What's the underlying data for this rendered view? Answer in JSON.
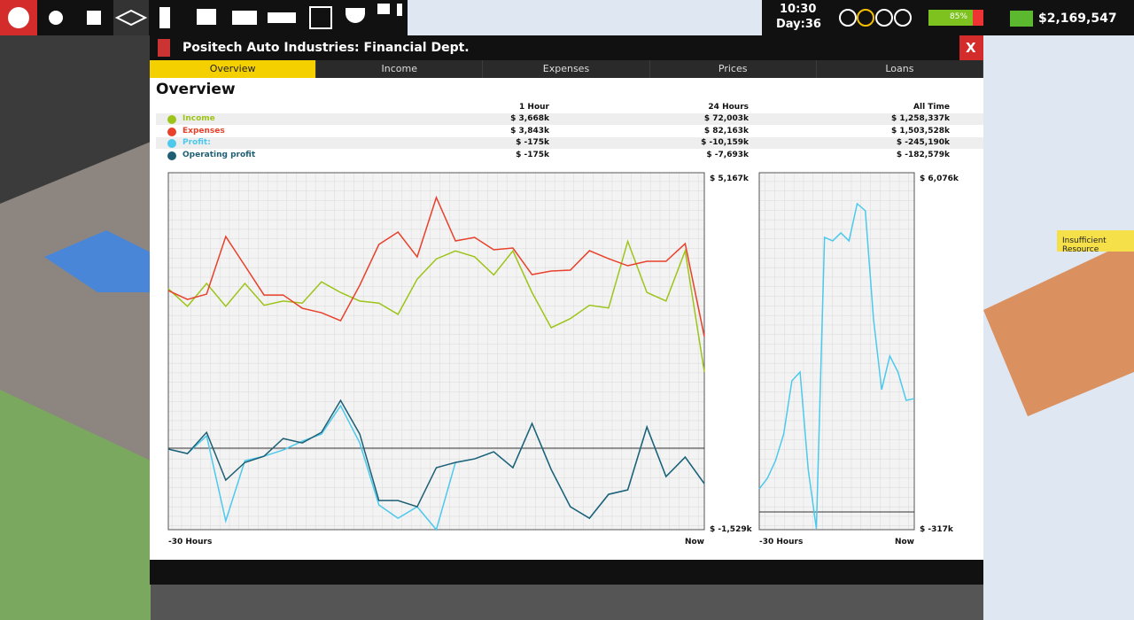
{
  "topbar": {
    "time": "10:30",
    "day": "Day:36",
    "battery": "85%",
    "money": "$2,169,547"
  },
  "window": {
    "title": "Positech Auto Industries: Financial Dept.",
    "close": "X",
    "tabs": [
      "Overview",
      "Income",
      "Expenses",
      "Prices",
      "Loans"
    ],
    "heading": "Overview"
  },
  "summary": {
    "columns": [
      "1 Hour",
      "24 Hours",
      "All Time"
    ],
    "rows": [
      [
        "$ 3,668k",
        "$ 72,003k",
        "$ 1,258,337k"
      ],
      [
        "$ 3,843k",
        "$ 82,163k",
        "$ 1,503,528k"
      ],
      [
        "$ -175k",
        "$ -10,159k",
        "$ -245,190k"
      ],
      [
        "$ -175k",
        "$ -7,693k",
        "$ -182,579k"
      ]
    ]
  },
  "side_note": "Insufficient Resource",
  "chart_data": [
    {
      "type": "line",
      "categories": [
        "-30 Hours",
        null,
        null,
        null,
        null,
        null,
        null,
        null,
        null,
        null,
        null,
        null,
        null,
        null,
        null,
        null,
        null,
        null,
        null,
        null,
        null,
        null,
        null,
        null,
        null,
        null,
        null,
        null,
        "Now"
      ],
      "ylim": [
        -1529,
        5167
      ],
      "yticks": [
        {
          "value": 5167,
          "label": "$ 5,167k"
        },
        {
          "value": -1529,
          "label": "$ -1,529k"
        }
      ],
      "grid": true,
      "series": [
        {
          "name": "Income",
          "color": "#9dc41a",
          "values": [
            2990,
            2660,
            3090,
            2660,
            3090,
            2680,
            2760,
            2720,
            3120,
            2920,
            2760,
            2720,
            2510,
            3170,
            3550,
            3700,
            3590,
            3250,
            3700,
            2920,
            2260,
            2430,
            2680,
            2630,
            3880,
            2920,
            2760,
            3700,
            1430
          ]
        },
        {
          "name": "Expenses",
          "color": "#e8402a",
          "values": [
            2957,
            2790,
            2890,
            3970,
            3422,
            2873,
            2873,
            2624,
            2541,
            2391,
            3056,
            3821,
            4054,
            3588,
            4702,
            3887,
            3954,
            3721,
            3754,
            3256,
            3322,
            3339,
            3704,
            3555,
            3422,
            3505,
            3505,
            3837,
            2092
          ]
        },
        {
          "name": "Profit:",
          "color": "#4cc9ec",
          "values": [
            -18,
            -102,
            231,
            -1365,
            -235,
            -151,
            -35,
            131,
            264,
            796,
            98,
            -1066,
            -1315,
            -1099,
            -1529,
            -268,
            -201,
            -68,
            -367,
            463,
            -400,
            -1099,
            -1315,
            -866,
            -783,
            397,
            -533,
            -168,
            -666
          ]
        },
        {
          "name": "Operating profit",
          "color": "#1f5f74",
          "values": [
            -18,
            -102,
            297,
            -600,
            -268,
            -151,
            181,
            98,
            297,
            895,
            264,
            -983,
            -983,
            -1099,
            -367,
            -268,
            -201,
            -68,
            -367,
            463,
            -400,
            -1099,
            -1315,
            -866,
            -783,
            397,
            -533,
            -168,
            -666
          ]
        }
      ]
    },
    {
      "type": "line",
      "categories": [
        "-30 Hours",
        null,
        null,
        null,
        null,
        null,
        null,
        null,
        null,
        null,
        null,
        null,
        null,
        null,
        null,
        null,
        null,
        null,
        null,
        "Now"
      ],
      "ylim": [
        -317,
        6076
      ],
      "yticks": [
        {
          "value": 6076,
          "label": "$ 6,076k"
        },
        {
          "value": -317,
          "label": "$ -317k"
        }
      ],
      "grid": true,
      "series": [
        {
          "color": "#4cc9ec",
          "values": [
            414,
            604,
            922,
            1397,
            2349,
            2507,
            763,
            -300,
            4918,
            4855,
            4998,
            4855,
            5521,
            5394,
            3459,
            2190,
            2793,
            2507,
            1999,
            2030
          ]
        }
      ]
    }
  ]
}
